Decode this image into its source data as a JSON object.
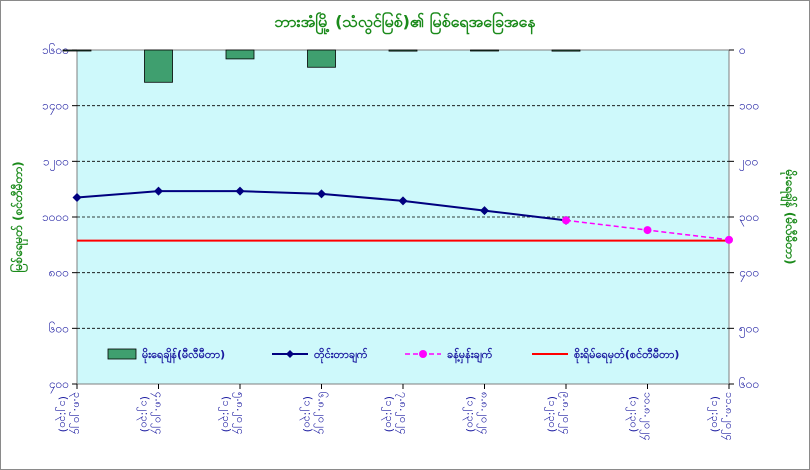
{
  "chart_data": {
    "type": "line",
    "title": "ဘားအံမြို့ (သံလွင်မြစ်)၏ မြစ်ရေအခြေအနေ",
    "ylabel_left": "မြစ်ရေမှတ် (စင်တီမီတာ)",
    "ylabel_right": "မိုးရေချိန် (မီလီမီတာ)",
    "left_axis": {
      "ylim": [
        400,
        1600
      ],
      "ticks": [
        400,
        600,
        800,
        1000,
        1200,
        1400,
        1600
      ],
      "tick_labels": [
        "၄၀၀",
        "၆၀၀",
        "၈၀၀",
        "၁၀၀၀",
        "၁၂၀၀",
        "၁၄၀၀",
        "၁၆၀၀"
      ]
    },
    "right_axis": {
      "ylim": [
        0,
        600
      ],
      "inverted": true,
      "ticks": [
        0,
        100,
        200,
        300,
        400,
        500,
        600
      ],
      "tick_labels": [
        "၀",
        "၁၀၀",
        "၂၀၀",
        "၃၀၀",
        "၄၀၀",
        "၅၀၀",
        "၆၀၀"
      ]
    },
    "categories": [
      [
        "၃.၈.၂၀၂၄",
        "(၁၂:၃၀)"
      ],
      [
        "၄.၈.၂၀၂၄",
        "(၁၂:၃၀)"
      ],
      [
        "၅.၈.၂၀၂၄",
        "(၁၂:၃၀)"
      ],
      [
        "၆.၈.၂၀၂၄",
        "(၁၂:၃၀)"
      ],
      [
        "၇.၈.၂၀၂၄",
        "(၁၂:၃၀)"
      ],
      [
        "၈.၈.၂၀၂၄",
        "(၁၂:၃၀)"
      ],
      [
        "၉.၈.၂၀၂၄",
        "(၁၂:၃၀)"
      ],
      [
        "၁၀.၈.၂၀၂၄",
        "(၁၂:၃၀)"
      ],
      [
        "၁၁.၈.၂၀၂၄",
        "(၁၂:၃၀)"
      ]
    ],
    "series": [
      {
        "name": "မိုးရေချိန်(မီလီမီတာ)",
        "type": "bar",
        "axis": "right",
        "color": "#3f9f6f",
        "values": [
          1,
          58,
          16,
          31,
          2,
          1,
          2,
          null,
          null
        ]
      },
      {
        "name": "တိုင်းတာချက်",
        "type": "line",
        "axis": "left",
        "color": "#00007f",
        "marker": "diamond",
        "values": [
          1070,
          1093,
          1093,
          1083,
          1058,
          1023,
          988,
          null,
          null
        ]
      },
      {
        "name": "ခန့်မှန်းချက်",
        "type": "line",
        "dashed": true,
        "axis": "left",
        "color": "#ff00ff",
        "marker": "circle",
        "values": [
          null,
          null,
          null,
          null,
          null,
          null,
          988,
          953,
          918
        ]
      },
      {
        "name": "စိုးရိမ်ရေမှတ်(စင်တီမီတာ)",
        "type": "hline",
        "axis": "left",
        "color": "#ff0000",
        "value": 915
      }
    ],
    "grid": true,
    "plot_background": "#cef9fb",
    "legend": "bottom, inside plot"
  }
}
